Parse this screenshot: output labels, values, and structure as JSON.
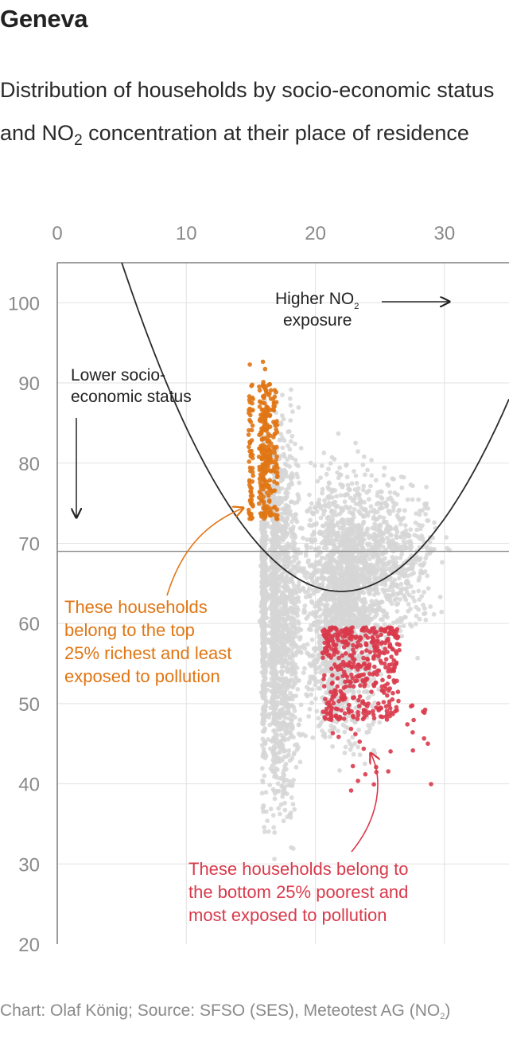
{
  "title": "Geneva",
  "subtitle": {
    "part1": "Distribution of households by socio-economic status and NO",
    "sub": "2",
    "part2": " concentration at their place of residence"
  },
  "source": {
    "part1": "Chart: Olaf König; Source: SFSO (SES), Meteotest AG (NO",
    "sub": "2",
    "part2": ")"
  },
  "chart_data": {
    "type": "scatter",
    "xlim": [
      0,
      35
    ],
    "ylim": [
      20,
      105
    ],
    "x_ticks": [
      "0",
      "10",
      "20",
      "30"
    ],
    "y_ticks": [
      "20",
      "30",
      "40",
      "50",
      "60",
      "70",
      "80",
      "90",
      "100"
    ],
    "grid": true,
    "reference_line_y": 69,
    "parabola": {
      "vertex_x": 22,
      "vertex_y": 64,
      "passes_through": [
        [
          5,
          105
        ],
        [
          35,
          89
        ]
      ]
    },
    "annotations": {
      "x_direction": {
        "line1": "Higher NO",
        "sub": "2",
        "line2": "exposure"
      },
      "y_direction": {
        "line1": "Lower socio-",
        "line2": "economic status"
      },
      "rich": [
        "These households",
        "belong to the top",
        "25% richest and least",
        "exposed to pollution"
      ],
      "poor": [
        "These households belong to",
        "the bottom 25% poorest and",
        "most exposed to pollution"
      ]
    },
    "series": [
      {
        "name": "",
        "color": "#d6d6d6",
        "clusters": [
          {
            "x_range": [
              15.5,
              19.5
            ],
            "y_range": [
              28,
              93
            ],
            "count": 1500
          },
          {
            "x_range": [
              18,
              26
            ],
            "y_range": [
              40,
              85
            ],
            "count": 2300
          },
          {
            "x_range": [
              20,
              31
            ],
            "y_range": [
              55,
              80
            ],
            "count": 900
          }
        ]
      },
      {
        "name": "",
        "color": "#e07614",
        "clusters": [
          {
            "x_range": [
              14.8,
              17.0
            ],
            "y_range": [
              73,
              90
            ],
            "count": 320
          },
          {
            "x_range": [
              15.9,
              16.4
            ],
            "y_range": [
              90,
              93
            ],
            "count": 4
          }
        ]
      },
      {
        "name": "",
        "color": "#d93a4b",
        "clusters": [
          {
            "x_range": [
              20.5,
              26.5
            ],
            "y_range": [
              48,
              59.5
            ],
            "count": 420
          },
          {
            "x_range": [
              21,
              29
            ],
            "y_range": [
              38,
              50
            ],
            "count": 45
          }
        ]
      }
    ]
  },
  "colors": {
    "grey": "#d6d6d6",
    "orange": "#e07614",
    "red": "#d93a4b",
    "axis": "#666666",
    "grid": "#e2e2e2"
  }
}
